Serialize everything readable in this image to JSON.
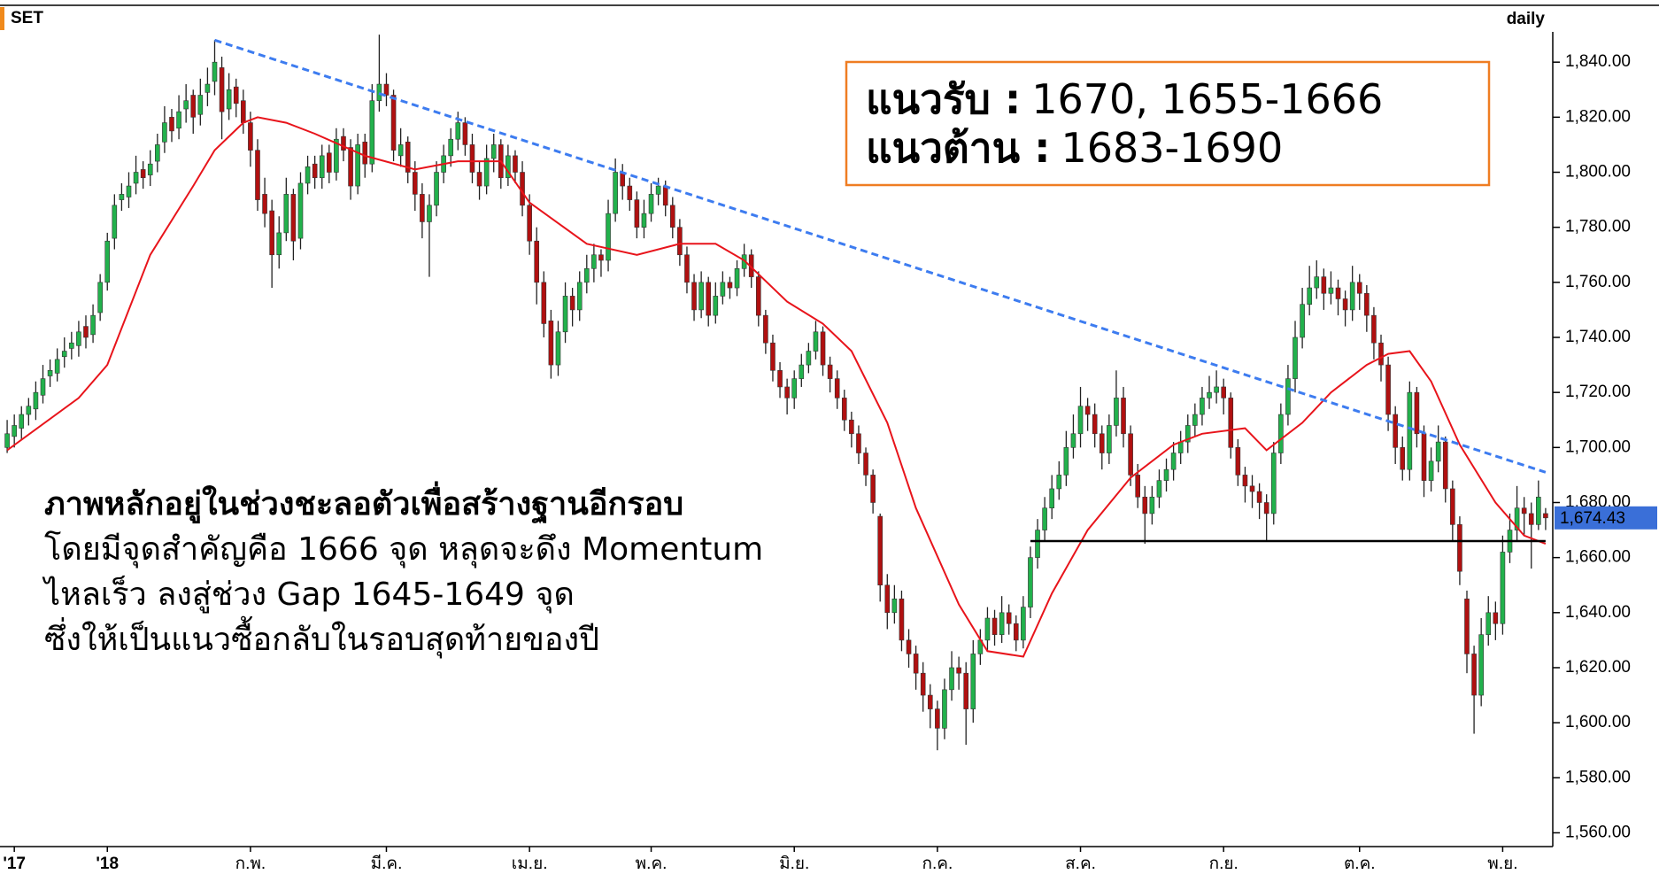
{
  "chart_data": {
    "type": "candlestick",
    "symbol": "SET",
    "period": "daily",
    "ylim": [
      1555,
      1851
    ],
    "yticks": [
      {
        "value": 1560,
        "label": "1,560.00"
      },
      {
        "value": 1580,
        "label": "1,580.00"
      },
      {
        "value": 1600,
        "label": "1,600.00"
      },
      {
        "value": 1620,
        "label": "1,620.00"
      },
      {
        "value": 1640,
        "label": "1,640.00"
      },
      {
        "value": 1660,
        "label": "1,660.00"
      },
      {
        "value": 1680,
        "label": "1,680.00"
      },
      {
        "value": 1700,
        "label": "1,700.00"
      },
      {
        "value": 1720,
        "label": "1,720.00"
      },
      {
        "value": 1740,
        "label": "1,740.00"
      },
      {
        "value": 1760,
        "label": "1,760.00"
      },
      {
        "value": 1780,
        "label": "1,780.00"
      },
      {
        "value": 1800,
        "label": "1,800.00"
      },
      {
        "value": 1820,
        "label": "1,820.00"
      },
      {
        "value": 1840,
        "label": "1,840.00"
      }
    ],
    "xlim": [
      -1,
      216
    ],
    "xticks": [
      {
        "value": 1,
        "label": "'17"
      },
      {
        "value": 14,
        "label": "'18"
      },
      {
        "value": 34,
        "label": "ก.พ."
      },
      {
        "value": 53,
        "label": "มี.ค."
      },
      {
        "value": 73,
        "label": "เม.ย."
      },
      {
        "value": 90,
        "label": "พ.ค."
      },
      {
        "value": 110,
        "label": "มิ.ย."
      },
      {
        "value": 130,
        "label": "ก.ค."
      },
      {
        "value": 150,
        "label": "ส.ค."
      },
      {
        "value": 170,
        "label": "ก.ย."
      },
      {
        "value": 189,
        "label": "ต.ค."
      },
      {
        "value": 209,
        "label": "พ.ย."
      }
    ],
    "up_color": "#22b14c",
    "down_color": "#b01010",
    "ohlc": [
      [
        1700,
        1710,
        1698,
        1705
      ],
      [
        1704,
        1712,
        1700,
        1708
      ],
      [
        1707,
        1715,
        1703,
        1712
      ],
      [
        1712,
        1718,
        1708,
        1715
      ],
      [
        1714,
        1724,
        1710,
        1720
      ],
      [
        1719,
        1730,
        1716,
        1725
      ],
      [
        1726,
        1732,
        1722,
        1728
      ],
      [
        1727,
        1736,
        1724,
        1732
      ],
      [
        1733,
        1740,
        1729,
        1735
      ],
      [
        1736,
        1742,
        1732,
        1738
      ],
      [
        1737,
        1746,
        1733,
        1742
      ],
      [
        1744,
        1748,
        1736,
        1740
      ],
      [
        1741,
        1752,
        1738,
        1748
      ],
      [
        1749,
        1763,
        1746,
        1760
      ],
      [
        1760,
        1778,
        1757,
        1775
      ],
      [
        1776,
        1792,
        1772,
        1788
      ],
      [
        1790,
        1796,
        1786,
        1792
      ],
      [
        1791,
        1800,
        1787,
        1795
      ],
      [
        1796,
        1806,
        1792,
        1800
      ],
      [
        1801,
        1804,
        1794,
        1798
      ],
      [
        1799,
        1808,
        1795,
        1803
      ],
      [
        1804,
        1814,
        1800,
        1810
      ],
      [
        1811,
        1824,
        1807,
        1818
      ],
      [
        1820,
        1823,
        1811,
        1815
      ],
      [
        1816,
        1828,
        1812,
        1822
      ],
      [
        1823,
        1832,
        1818,
        1826
      ],
      [
        1828,
        1830,
        1814,
        1820
      ],
      [
        1821,
        1834,
        1817,
        1828
      ],
      [
        1829,
        1838,
        1824,
        1832
      ],
      [
        1833,
        1848,
        1828,
        1840
      ],
      [
        1838,
        1842,
        1812,
        1822
      ],
      [
        1823,
        1836,
        1819,
        1830
      ],
      [
        1831,
        1834,
        1820,
        1825
      ],
      [
        1826,
        1830,
        1814,
        1818
      ],
      [
        1818,
        1822,
        1802,
        1808
      ],
      [
        1808,
        1812,
        1786,
        1790
      ],
      [
        1792,
        1798,
        1780,
        1785
      ],
      [
        1786,
        1790,
        1758,
        1770
      ],
      [
        1770,
        1784,
        1765,
        1778
      ],
      [
        1778,
        1798,
        1775,
        1792
      ],
      [
        1792,
        1794,
        1768,
        1775
      ],
      [
        1776,
        1800,
        1772,
        1796
      ],
      [
        1796,
        1806,
        1792,
        1802
      ],
      [
        1803,
        1806,
        1794,
        1798
      ],
      [
        1798,
        1810,
        1794,
        1806
      ],
      [
        1807,
        1810,
        1796,
        1800
      ],
      [
        1800,
        1816,
        1797,
        1812
      ],
      [
        1813,
        1816,
        1804,
        1808
      ],
      [
        1809,
        1812,
        1790,
        1795
      ],
      [
        1795,
        1814,
        1792,
        1810
      ],
      [
        1811,
        1814,
        1798,
        1803
      ],
      [
        1803,
        1832,
        1800,
        1826
      ],
      [
        1826,
        1850,
        1822,
        1832
      ],
      [
        1832,
        1836,
        1824,
        1828
      ],
      [
        1828,
        1830,
        1804,
        1808
      ],
      [
        1806,
        1816,
        1802,
        1810
      ],
      [
        1811,
        1813,
        1796,
        1800
      ],
      [
        1800,
        1804,
        1786,
        1792
      ],
      [
        1792,
        1796,
        1776,
        1782
      ],
      [
        1782,
        1792,
        1762,
        1788
      ],
      [
        1788,
        1804,
        1784,
        1800
      ],
      [
        1800,
        1810,
        1796,
        1806
      ],
      [
        1806,
        1816,
        1802,
        1812
      ],
      [
        1812,
        1822,
        1808,
        1818
      ],
      [
        1818,
        1820,
        1806,
        1810
      ],
      [
        1810,
        1814,
        1796,
        1800
      ],
      [
        1800,
        1804,
        1790,
        1795
      ],
      [
        1795,
        1810,
        1792,
        1805
      ],
      [
        1805,
        1814,
        1800,
        1810
      ],
      [
        1810,
        1812,
        1794,
        1798
      ],
      [
        1798,
        1810,
        1795,
        1806
      ],
      [
        1806,
        1808,
        1796,
        1800
      ],
      [
        1800,
        1804,
        1784,
        1788
      ],
      [
        1788,
        1792,
        1770,
        1775
      ],
      [
        1775,
        1780,
        1752,
        1760
      ],
      [
        1760,
        1764,
        1740,
        1745
      ],
      [
        1746,
        1750,
        1725,
        1730
      ],
      [
        1730,
        1746,
        1726,
        1742
      ],
      [
        1742,
        1760,
        1738,
        1755
      ],
      [
        1755,
        1758,
        1744,
        1750
      ],
      [
        1750,
        1764,
        1746,
        1760
      ],
      [
        1760,
        1770,
        1756,
        1765
      ],
      [
        1765,
        1774,
        1760,
        1770
      ],
      [
        1770,
        1772,
        1762,
        1768
      ],
      [
        1768,
        1790,
        1764,
        1785
      ],
      [
        1785,
        1805,
        1782,
        1800
      ],
      [
        1800,
        1803,
        1790,
        1795
      ],
      [
        1795,
        1798,
        1786,
        1790
      ],
      [
        1790,
        1793,
        1776,
        1780
      ],
      [
        1780,
        1790,
        1776,
        1785
      ],
      [
        1785,
        1796,
        1782,
        1792
      ],
      [
        1792,
        1798,
        1788,
        1795
      ],
      [
        1795,
        1797,
        1784,
        1788
      ],
      [
        1788,
        1791,
        1776,
        1780
      ],
      [
        1780,
        1783,
        1766,
        1770
      ],
      [
        1770,
        1773,
        1756,
        1760
      ],
      [
        1760,
        1763,
        1746,
        1750
      ],
      [
        1750,
        1764,
        1747,
        1760
      ],
      [
        1760,
        1762,
        1744,
        1748
      ],
      [
        1748,
        1760,
        1745,
        1755
      ],
      [
        1755,
        1764,
        1752,
        1760
      ],
      [
        1760,
        1762,
        1754,
        1758
      ],
      [
        1758,
        1768,
        1755,
        1765
      ],
      [
        1765,
        1774,
        1762,
        1770
      ],
      [
        1770,
        1772,
        1758,
        1762
      ],
      [
        1762,
        1764,
        1744,
        1748
      ],
      [
        1748,
        1750,
        1734,
        1738
      ],
      [
        1738,
        1741,
        1724,
        1728
      ],
      [
        1728,
        1731,
        1718,
        1722
      ],
      [
        1722,
        1725,
        1712,
        1718
      ],
      [
        1718,
        1728,
        1714,
        1725
      ],
      [
        1725,
        1734,
        1722,
        1730
      ],
      [
        1730,
        1738,
        1727,
        1735
      ],
      [
        1735,
        1746,
        1732,
        1742
      ],
      [
        1742,
        1744,
        1726,
        1730
      ],
      [
        1730,
        1733,
        1720,
        1725
      ],
      [
        1725,
        1728,
        1714,
        1718
      ],
      [
        1718,
        1721,
        1706,
        1710
      ],
      [
        1710,
        1713,
        1700,
        1705
      ],
      [
        1705,
        1708,
        1694,
        1698
      ],
      [
        1698,
        1700,
        1686,
        1690
      ],
      [
        1690,
        1692,
        1676,
        1680
      ],
      [
        1675,
        1676,
        1644,
        1650
      ],
      [
        1650,
        1654,
        1634,
        1640
      ],
      [
        1640,
        1650,
        1636,
        1645
      ],
      [
        1645,
        1648,
        1626,
        1630
      ],
      [
        1630,
        1634,
        1620,
        1625
      ],
      [
        1625,
        1628,
        1612,
        1618
      ],
      [
        1618,
        1622,
        1604,
        1610
      ],
      [
        1610,
        1614,
        1598,
        1605
      ],
      [
        1605,
        1608,
        1590,
        1598
      ],
      [
        1598,
        1616,
        1594,
        1612
      ],
      [
        1612,
        1626,
        1608,
        1620
      ],
      [
        1620,
        1624,
        1612,
        1618
      ],
      [
        1618,
        1622,
        1592,
        1605
      ],
      [
        1605,
        1630,
        1600,
        1625
      ],
      [
        1625,
        1634,
        1621,
        1630
      ],
      [
        1630,
        1642,
        1626,
        1638
      ],
      [
        1638,
        1641,
        1628,
        1632
      ],
      [
        1632,
        1646,
        1629,
        1640
      ],
      [
        1640,
        1643,
        1632,
        1636
      ],
      [
        1636,
        1639,
        1626,
        1630
      ],
      [
        1630,
        1646,
        1627,
        1642
      ],
      [
        1642,
        1664,
        1638,
        1660
      ],
      [
        1660,
        1674,
        1656,
        1670
      ],
      [
        1670,
        1682,
        1666,
        1678
      ],
      [
        1678,
        1690,
        1674,
        1685
      ],
      [
        1685,
        1695,
        1681,
        1690
      ],
      [
        1690,
        1706,
        1686,
        1700
      ],
      [
        1700,
        1712,
        1696,
        1705
      ],
      [
        1705,
        1722,
        1700,
        1715
      ],
      [
        1715,
        1718,
        1706,
        1712
      ],
      [
        1712,
        1716,
        1700,
        1705
      ],
      [
        1705,
        1708,
        1692,
        1698
      ],
      [
        1698,
        1712,
        1694,
        1708
      ],
      [
        1708,
        1728,
        1704,
        1718
      ],
      [
        1718,
        1722,
        1700,
        1705
      ],
      [
        1705,
        1708,
        1686,
        1690
      ],
      [
        1690,
        1694,
        1678,
        1682
      ],
      [
        1682,
        1686,
        1665,
        1676
      ],
      [
        1676,
        1686,
        1672,
        1682
      ],
      [
        1682,
        1692,
        1678,
        1688
      ],
      [
        1688,
        1696,
        1684,
        1692
      ],
      [
        1692,
        1702,
        1688,
        1698
      ],
      [
        1698,
        1706,
        1694,
        1702
      ],
      [
        1702,
        1712,
        1698,
        1708
      ],
      [
        1708,
        1716,
        1704,
        1712
      ],
      [
        1712,
        1722,
        1708,
        1718
      ],
      [
        1718,
        1726,
        1714,
        1720
      ],
      [
        1720,
        1728,
        1716,
        1722
      ],
      [
        1722,
        1725,
        1712,
        1718
      ],
      [
        1718,
        1720,
        1696,
        1700
      ],
      [
        1700,
        1703,
        1686,
        1690
      ],
      [
        1690,
        1693,
        1680,
        1686
      ],
      [
        1686,
        1690,
        1678,
        1684
      ],
      [
        1684,
        1687,
        1674,
        1680
      ],
      [
        1680,
        1683,
        1666,
        1676
      ],
      [
        1676,
        1702,
        1672,
        1698
      ],
      [
        1698,
        1716,
        1694,
        1712
      ],
      [
        1712,
        1730,
        1708,
        1725
      ],
      [
        1725,
        1746,
        1720,
        1740
      ],
      [
        1740,
        1758,
        1736,
        1752
      ],
      [
        1752,
        1766,
        1748,
        1758
      ],
      [
        1758,
        1768,
        1754,
        1762
      ],
      [
        1762,
        1765,
        1750,
        1756
      ],
      [
        1756,
        1764,
        1752,
        1758
      ],
      [
        1758,
        1761,
        1748,
        1754
      ],
      [
        1754,
        1757,
        1744,
        1750
      ],
      [
        1750,
        1766,
        1746,
        1760
      ],
      [
        1760,
        1763,
        1750,
        1756
      ],
      [
        1756,
        1759,
        1742,
        1748
      ],
      [
        1748,
        1751,
        1732,
        1738
      ],
      [
        1738,
        1741,
        1724,
        1730
      ],
      [
        1730,
        1733,
        1706,
        1712
      ],
      [
        1712,
        1715,
        1694,
        1700
      ],
      [
        1700,
        1704,
        1688,
        1692
      ],
      [
        1692,
        1724,
        1688,
        1720
      ],
      [
        1720,
        1722,
        1700,
        1705
      ],
      [
        1705,
        1708,
        1682,
        1688
      ],
      [
        1688,
        1700,
        1684,
        1695
      ],
      [
        1695,
        1708,
        1691,
        1702
      ],
      [
        1702,
        1704,
        1680,
        1685
      ],
      [
        1685,
        1688,
        1666,
        1672
      ],
      [
        1672,
        1675,
        1650,
        1655
      ],
      [
        1645,
        1648,
        1618,
        1625
      ],
      [
        1625,
        1628,
        1596,
        1610
      ],
      [
        1610,
        1638,
        1606,
        1632
      ],
      [
        1632,
        1646,
        1628,
        1640
      ],
      [
        1640,
        1644,
        1630,
        1636
      ],
      [
        1636,
        1668,
        1632,
        1662
      ],
      [
        1662,
        1676,
        1658,
        1670
      ],
      [
        1670,
        1686,
        1666,
        1678
      ],
      [
        1678,
        1682,
        1668,
        1676
      ],
      [
        1676,
        1680,
        1656,
        1672
      ],
      [
        1672,
        1688,
        1670,
        1682
      ],
      [
        1676,
        1678,
        1670,
        1674.43
      ]
    ],
    "moving_average": {
      "color": "#e8141b",
      "x": [
        0,
        10,
        14,
        20,
        26,
        29,
        33,
        35,
        39,
        43,
        50,
        57,
        63,
        69,
        73,
        81,
        88,
        94,
        99,
        103,
        109,
        114,
        118,
        123,
        127,
        133,
        137,
        142,
        146,
        151,
        157,
        163,
        167,
        173,
        176,
        181,
        185,
        190,
        193,
        196,
        199,
        203,
        208,
        212,
        215
      ],
      "values": [
        1699,
        1718,
        1730,
        1770,
        1795,
        1808,
        1818,
        1820,
        1818,
        1814,
        1806,
        1801,
        1804,
        1804,
        1789,
        1774,
        1770,
        1774,
        1774,
        1768,
        1753,
        1745,
        1735,
        1709,
        1678,
        1643,
        1626,
        1624,
        1647,
        1670,
        1689,
        1701,
        1705,
        1707,
        1699,
        1709,
        1720,
        1730,
        1734,
        1735,
        1724,
        1701,
        1680,
        1668,
        1665
      ]
    },
    "trendline": {
      "color": "#3d7cf0",
      "x": [
        29,
        215
      ],
      "values": [
        1848,
        1691
      ]
    },
    "support_line": {
      "color": "#000000",
      "x": [
        143,
        215
      ],
      "values": [
        1666,
        1666
      ]
    },
    "last_price": {
      "value": 1674.43,
      "label": "1,674.43",
      "color": "#3a6fd8"
    },
    "levels_box": [
      {
        "label": "แนวรับ   :",
        "text": "1670, 1655-1666"
      },
      {
        "label": "แนวต้าน :",
        "text": "1683-1690"
      }
    ],
    "commentary": {
      "headline": "ภาพหลักอยู่ในช่วงชะลอตัวเพื่อสร้างฐานอีกรอบ",
      "lines": [
        "โดยมีจุดสำคัญคือ 1666 จุด หลุดจะดึง Momentum",
        "ไหลเร็ว ลงสู่ช่วง Gap 1645-1649 จุด",
        "ซึ่งให้เป็นแนวซื้อกลับในรอบสุดท้ายของปี"
      ]
    }
  }
}
